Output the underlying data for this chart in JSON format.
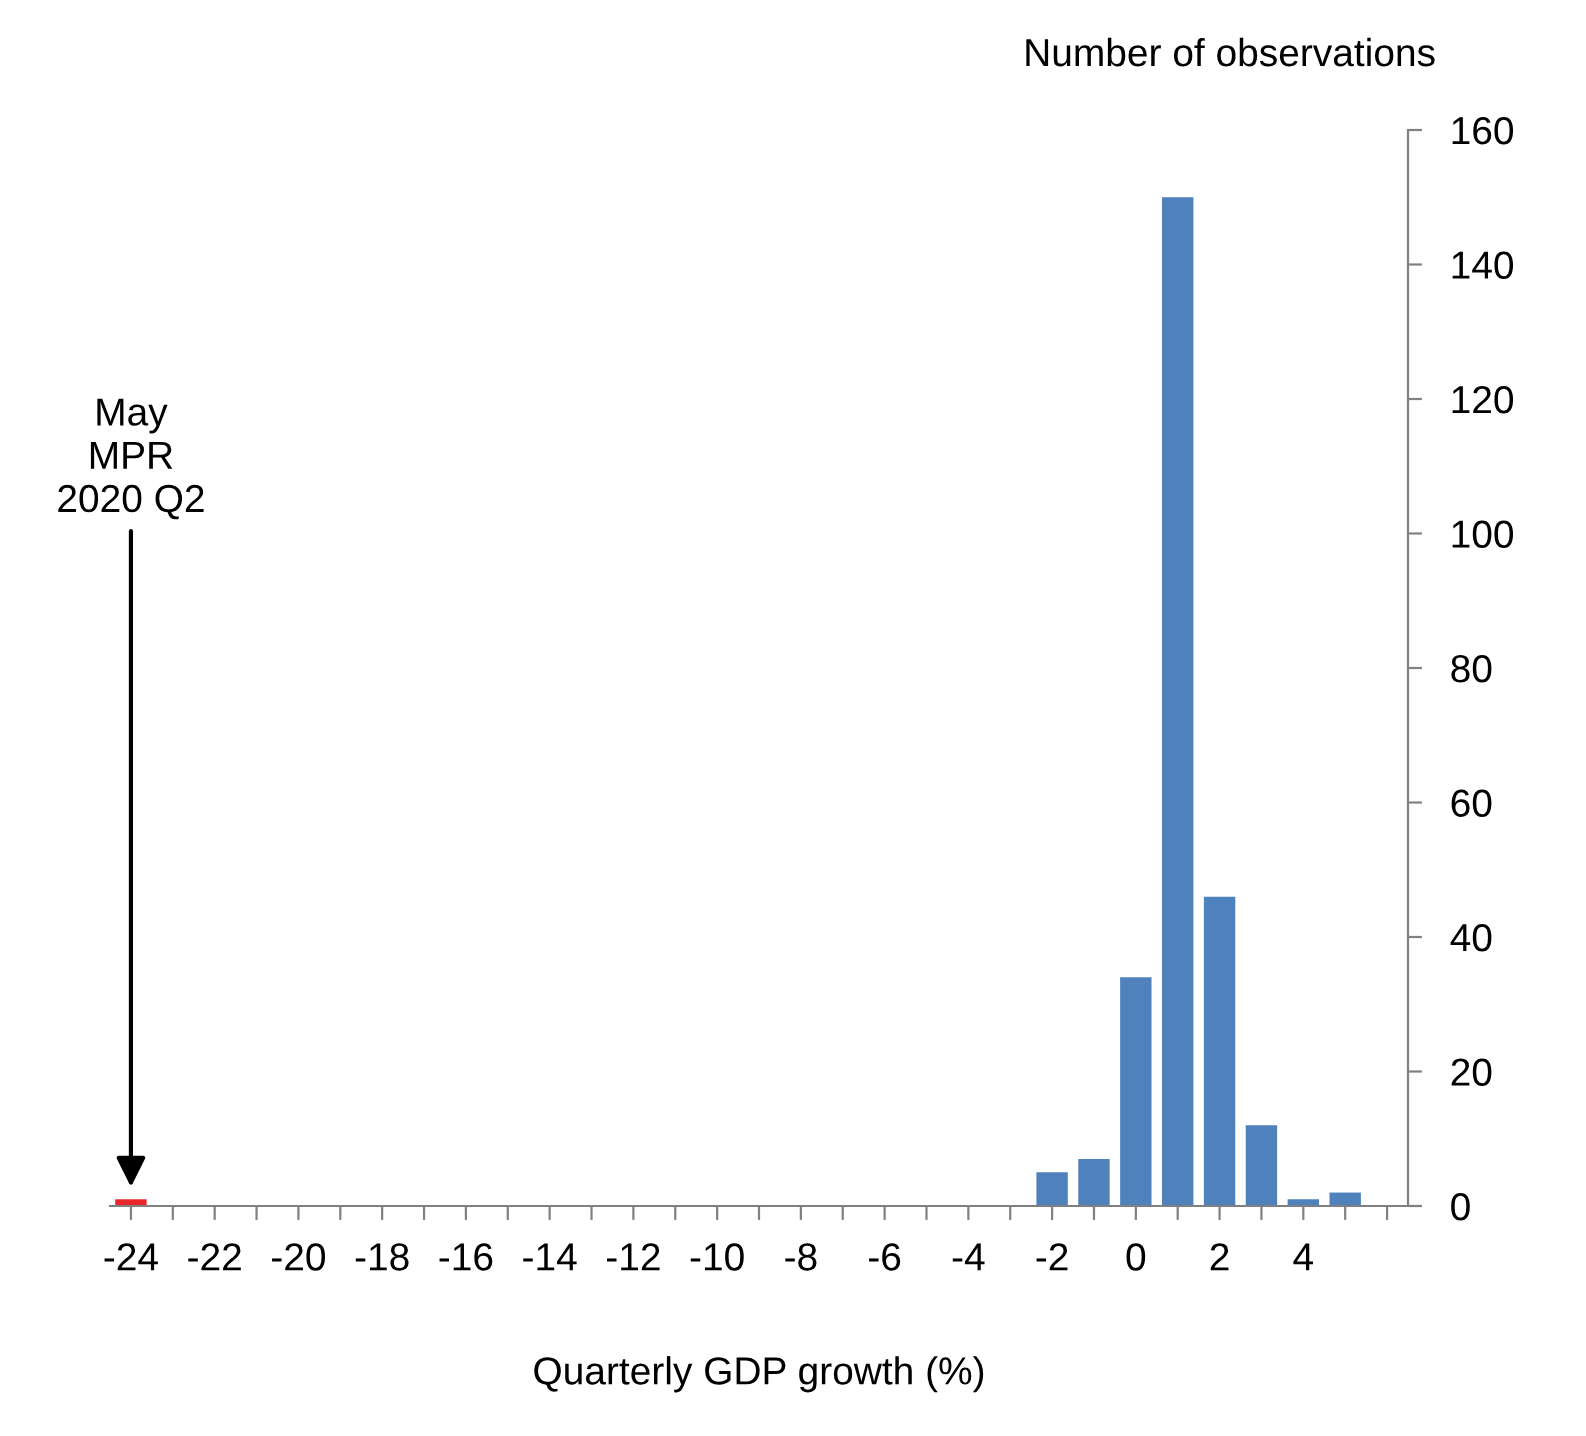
{
  "chart_data": {
    "type": "bar",
    "categories": [
      "-24",
      null,
      "-22",
      null,
      "-20",
      null,
      "-18",
      null,
      "-16",
      null,
      "-14",
      null,
      "-12",
      null,
      "-10",
      null,
      "-8",
      null,
      "-6",
      null,
      "-4",
      null,
      "-2",
      null,
      "0",
      null,
      "2",
      null,
      "4",
      null,
      null
    ],
    "values": [
      1,
      0,
      0,
      0,
      0,
      0,
      0,
      0,
      0,
      0,
      0,
      0,
      0,
      0,
      0,
      0,
      0,
      0,
      0,
      0,
      0,
      0,
      5,
      7,
      34,
      150,
      46,
      12,
      1,
      2,
      0
    ],
    "colors": [
      "#e8262b",
      "#4f81bd",
      "#4f81bd",
      "#4f81bd",
      "#4f81bd",
      "#4f81bd",
      "#4f81bd",
      "#4f81bd",
      "#4f81bd",
      "#4f81bd",
      "#4f81bd",
      "#4f81bd",
      "#4f81bd",
      "#4f81bd",
      "#4f81bd",
      "#4f81bd",
      "#4f81bd",
      "#4f81bd",
      "#4f81bd",
      "#4f81bd",
      "#4f81bd",
      "#4f81bd",
      "#4f81bd",
      "#4f81bd",
      "#4f81bd",
      "#4f81bd",
      "#4f81bd",
      "#4f81bd",
      "#4f81bd",
      "#4f81bd",
      "#4f81bd"
    ],
    "xlabel": "Quarterly GDP growth (%)",
    "ylabel": "Number of observations",
    "ylim": [
      0,
      160
    ],
    "yticks": [
      0,
      20,
      40,
      60,
      80,
      100,
      120,
      140,
      160
    ],
    "annotations": [
      {
        "text": "May\nMPR\n2020 Q2",
        "x": "-24",
        "y": 1
      }
    ],
    "grid": false,
    "legend": false
  }
}
